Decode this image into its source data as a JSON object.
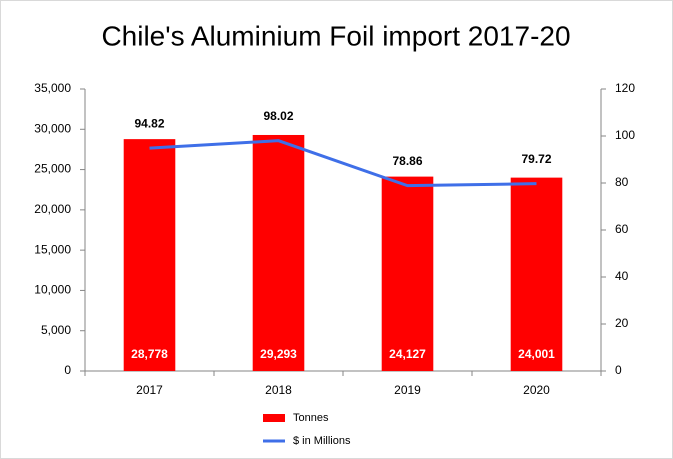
{
  "chart_data": {
    "type": "combo",
    "title": "Chile's Aluminium Foil import 2017-20",
    "categories": [
      "2017",
      "2018",
      "2019",
      "2020"
    ],
    "series": [
      {
        "name": "Tonnes",
        "type": "bar",
        "color": "#ff0000",
        "values": [
          28778,
          29293,
          24127,
          24001
        ],
        "value_labels": [
          "28,778",
          "29,293",
          "24,127",
          "24,001"
        ]
      },
      {
        "name": "$ in Millions",
        "type": "line",
        "axis": "y2",
        "color": "#3f6fe8",
        "values": [
          94.82,
          98.02,
          78.86,
          79.72
        ]
      }
    ],
    "ylim": [
      0,
      35000
    ],
    "yticks": [
      0,
      {
        "value": 5000,
        "label": "5,000"
      },
      {
        "value": 10000,
        "label": "10,000"
      },
      {
        "value": 15000,
        "label": "15,000"
      },
      {
        "value": 20000,
        "label": "20,000"
      },
      {
        "value": 25000,
        "label": "25,000"
      },
      {
        "value": 30000,
        "label": "30,000"
      },
      {
        "value": 35000,
        "label": "35,000"
      }
    ],
    "y2lim": [
      0,
      120
    ],
    "y2ticks": [
      0,
      20,
      40,
      60,
      80,
      100,
      120
    ],
    "grid": false,
    "legend": "bottom"
  }
}
